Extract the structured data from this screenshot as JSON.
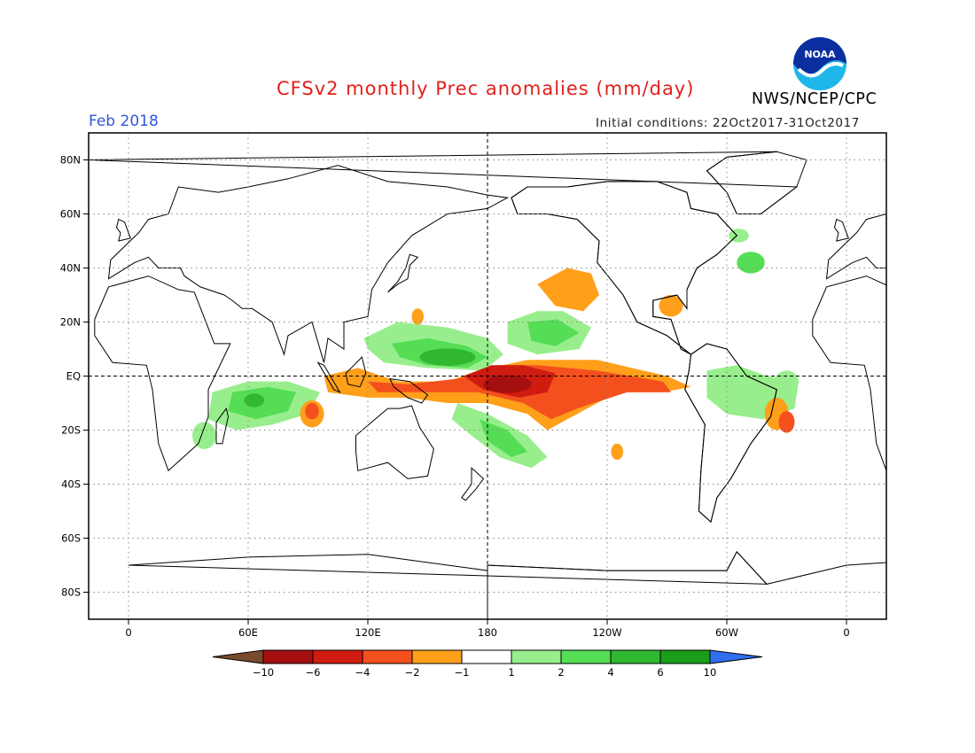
{
  "title": "CFSv2 monthly Prec anomalies (mm/day)",
  "target_month": "Feb 2018",
  "initial_conditions": "Initial conditions: 22Oct2017-31Oct2017",
  "agency": "NWS/NCEP/CPC",
  "logo": {
    "icon": "noaa-logo-icon",
    "text": "NOAA"
  },
  "map": {
    "lon_range": [
      -20,
      380
    ],
    "lat_range": [
      -90,
      90
    ],
    "lat_ticks": [
      {
        "lat": 80,
        "label": "80N"
      },
      {
        "lat": 60,
        "label": "60N"
      },
      {
        "lat": 40,
        "label": "40N"
      },
      {
        "lat": 20,
        "label": "20N"
      },
      {
        "lat": 0,
        "label": "EQ"
      },
      {
        "lat": -20,
        "label": "20S"
      },
      {
        "lat": -40,
        "label": "40S"
      },
      {
        "lat": -60,
        "label": "60S"
      },
      {
        "lat": -80,
        "label": "80S"
      }
    ],
    "lon_ticks": [
      {
        "lon": 0,
        "label": "0"
      },
      {
        "lon": 60,
        "label": "60E"
      },
      {
        "lon": 120,
        "label": "120E"
      },
      {
        "lon": 180,
        "label": "180"
      },
      {
        "lon": 240,
        "label": "120W"
      },
      {
        "lon": 300,
        "label": "60W"
      },
      {
        "lon": 360,
        "label": "0"
      }
    ],
    "gridlines": "dotted",
    "reference_lines": [
      "equator",
      "dateline"
    ]
  },
  "legend": {
    "labels": [
      "-10",
      "-6",
      "-4",
      "-2",
      "-1",
      "1",
      "2",
      "4",
      "6",
      "10"
    ],
    "colors": [
      "#7a4a2c",
      "#a50f0f",
      "#cf1b10",
      "#f4501e",
      "#ff9f1a",
      "#ffffff",
      "#98ee8c",
      "#55dd55",
      "#31b831",
      "#1a9e1a",
      "#2f6ff0"
    ]
  },
  "anomaly_regions": [
    {
      "name": "central-pacific-dry-core",
      "class": "-6 to -10",
      "color": "#a50f0f",
      "lon": 190,
      "lat": -3
    },
    {
      "name": "equatorial-pacific-dry",
      "class": "-4 to -6",
      "color": "#cf1b10",
      "lon": 205,
      "lat": -5
    },
    {
      "name": "east-pacific-dry-tongue",
      "class": "-2 to -4",
      "color": "#f4501e",
      "lon": 250,
      "lat": -3
    },
    {
      "name": "maritime-continent-dry",
      "class": "-2 to -4",
      "color": "#f4501e",
      "lon": 120,
      "lat": -4
    },
    {
      "name": "brazil-dry",
      "class": "-2 to -4",
      "color": "#f4501e",
      "lon": 330,
      "lat": -17
    },
    {
      "name": "north-pacific-dry",
      "class": "-1 to -2",
      "color": "#ff9f1a",
      "lon": 220,
      "lat": 36
    },
    {
      "name": "gulf-of-mexico-dry",
      "class": "-1 to -2",
      "color": "#ff9f1a",
      "lon": 275,
      "lat": 25
    },
    {
      "name": "south-indian-dry",
      "class": "-1 to -2",
      "color": "#ff9f1a",
      "lon": 95,
      "lat": -15
    },
    {
      "name": "nw-pacific-wet",
      "class": "+2 to +6",
      "color": "#31b831",
      "lon": 160,
      "lat": 8
    },
    {
      "name": "hawaii-wet",
      "class": "+1 to +2",
      "color": "#98ee8c",
      "lon": 205,
      "lat": 16
    },
    {
      "name": "indian-ocean-wet",
      "class": "+2 to +6",
      "color": "#55dd55",
      "lon": 70,
      "lat": -8
    },
    {
      "name": "spcz-wet",
      "class": "+1 to +4",
      "color": "#55dd55",
      "lon": 190,
      "lat": -22
    },
    {
      "name": "amazon-wet",
      "class": "+1 to +2",
      "color": "#98ee8c",
      "lon": 305,
      "lat": -5
    },
    {
      "name": "atlantic-wet",
      "class": "+1 to +4",
      "color": "#55dd55",
      "lon": 315,
      "lat": 40
    }
  ]
}
